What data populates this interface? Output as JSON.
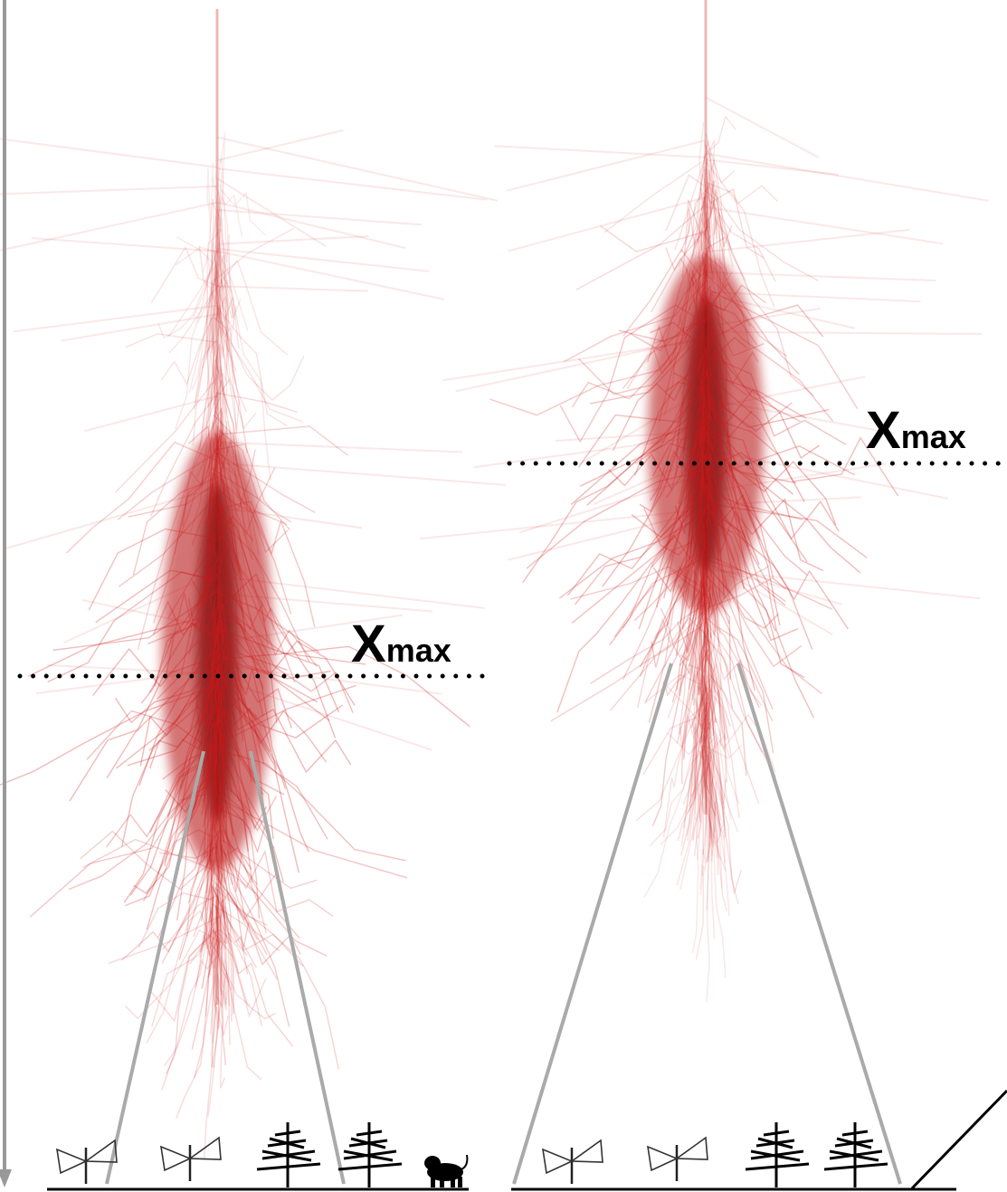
{
  "showers": [
    {
      "label": {
        "main": "X",
        "sub": "max"
      }
    },
    {
      "label": {
        "main": "X",
        "sub": "max"
      }
    }
  ]
}
